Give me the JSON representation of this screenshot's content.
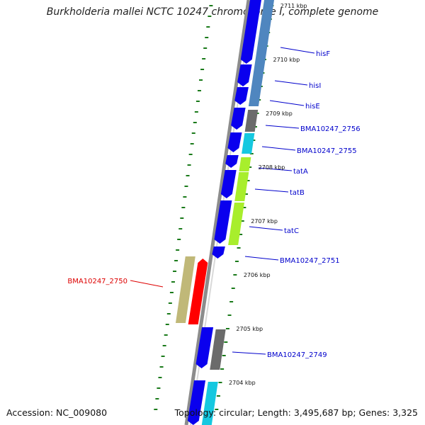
{
  "title": "Burkholderia mallei NCTC 10247 chromosome I, complete genome",
  "accession": "Accession: NC_009080",
  "summary": "Topology: circular; Length: 3,495,687 bp; Genes: 3,325",
  "scale_labels": [
    "2711 kbp",
    "2710 kbp",
    "2709 kbp",
    "2708 kbp",
    "2707 kbp",
    "2706 kbp",
    "2705 kbp",
    "2704 kbp"
  ],
  "colors": {
    "forward_cds": "#0a00ee",
    "reverse_cds_highlight": "#ff0000",
    "label_forward": "#0000cc",
    "label_highlight": "#dd0000",
    "tick": "#1a7a1a",
    "backbone": "#8c8c8c"
  },
  "genes": [
    {
      "name": "hisF",
      "color": "#4f86bf"
    },
    {
      "name": "hisI",
      "color": "#4f86bf"
    },
    {
      "name": "hisE",
      "color": "#4f86bf"
    },
    {
      "name": "BMA10247_2756",
      "color": "#6b6b6b"
    },
    {
      "name": "BMA10247_2755",
      "color": "#15c8e0"
    },
    {
      "name": "tatA",
      "color": "#a8ee2c"
    },
    {
      "name": "tatB",
      "color": "#a8ee2c"
    },
    {
      "name": "tatC",
      "color": "#a8ee2c"
    },
    {
      "name": "BMA10247_2751",
      "color": "#0a00ee"
    },
    {
      "name": "BMA10247_2750",
      "color": "#c0b878"
    },
    {
      "name": "BMA10247_2749",
      "color": "#6b6b6b"
    }
  ]
}
